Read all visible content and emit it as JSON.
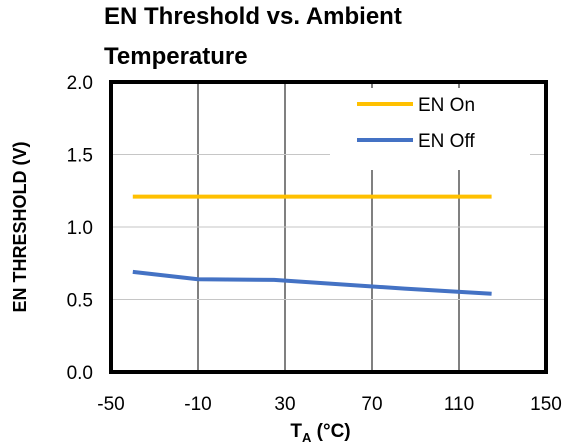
{
  "chart_data": {
    "type": "line",
    "title_lines": [
      "EN Threshold vs. Ambient",
      "Temperature"
    ],
    "xlabel_main": "T",
    "xlabel_sub": "A",
    "xlabel_rest": " (°C)",
    "ylabel": "EN THRESHOLD  (V)",
    "xlim": [
      -50,
      150
    ],
    "ylim": [
      0,
      2.0
    ],
    "xticks": [
      -50,
      -10,
      30,
      70,
      110,
      150
    ],
    "yticks": [
      0.0,
      0.5,
      1.0,
      1.5,
      2.0
    ],
    "xtick_labels": [
      "-50",
      "-10",
      "30",
      "70",
      "110",
      "150"
    ],
    "ytick_labels": [
      "0.0",
      "0.5",
      "1.0",
      "1.5",
      "2.0"
    ],
    "x_gridlines": [
      -10,
      30,
      70,
      110
    ],
    "y_gridlines": [
      0.5,
      1.0,
      1.5
    ],
    "legend_position": "top-right",
    "series": [
      {
        "name": "EN On",
        "color": "#FFC000",
        "x": [
          -40,
          25,
          125
        ],
        "y": [
          1.21,
          1.21,
          1.21
        ]
      },
      {
        "name": "EN Off",
        "color": "#4472C4",
        "x": [
          -40,
          -10,
          25,
          85,
          125
        ],
        "y": [
          0.69,
          0.64,
          0.635,
          0.575,
          0.54
        ]
      }
    ]
  }
}
